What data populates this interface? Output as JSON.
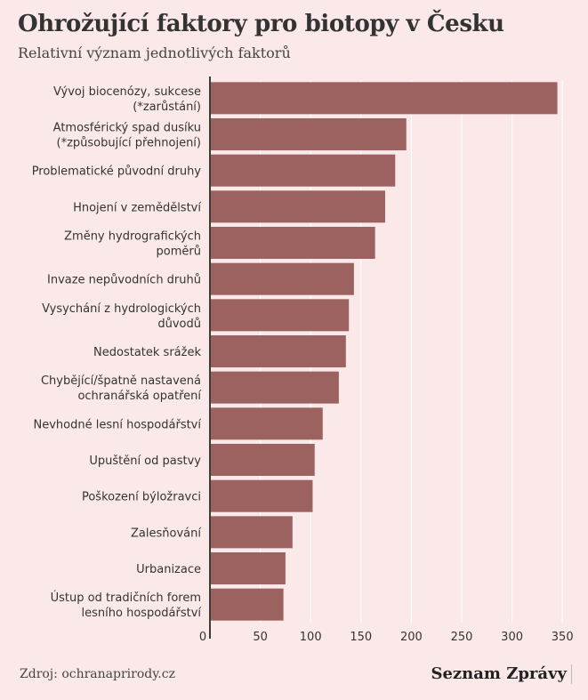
{
  "title": "Ohrožující faktory pro biotopy v Česku",
  "subtitle": "Relativní význam jednotlivých faktorů",
  "source": "Zdroj: ochranaprirody.cz",
  "brand": "Seznam Zprávy",
  "colors": {
    "bar": "#9b6260",
    "background": "#fbe9e9",
    "grid": "#ffffff",
    "axis": "#111111"
  },
  "chart_data": {
    "type": "bar",
    "orientation": "horizontal",
    "categories": [
      [
        "Vývoj biocenózy, sukcese",
        "(*zarůstání)"
      ],
      [
        "Atmosférický spad dusíku",
        "(*způsobující přehnojení)"
      ],
      [
        "Problematické původní druhy"
      ],
      [
        "Hnojení v zemědělství"
      ],
      [
        "Změny hydrografických",
        "poměrů"
      ],
      [
        "Invaze nepůvodních druhů"
      ],
      [
        "Vysychání z hydrologických",
        "důvodů"
      ],
      [
        "Nedostatek srážek"
      ],
      [
        "Chybějící/špatně nastavená",
        "ochranářská opatření"
      ],
      [
        "Nevhodné lesní hospodářství"
      ],
      [
        "Upuštění od pastvy"
      ],
      [
        "Poškození býložravci"
      ],
      [
        "Zalesňování"
      ],
      [
        "Urbanizace"
      ],
      [
        "Ústup od tradičních forem",
        "lesního hospodářství"
      ]
    ],
    "values": [
      345,
      195,
      184,
      174,
      164,
      143,
      138,
      135,
      128,
      112,
      104,
      102,
      82,
      75,
      73
    ],
    "xlim": [
      0,
      360
    ],
    "xticks": [
      "0",
      "50",
      "100",
      "150",
      "200",
      "250",
      "300",
      "350"
    ],
    "grid": true
  }
}
